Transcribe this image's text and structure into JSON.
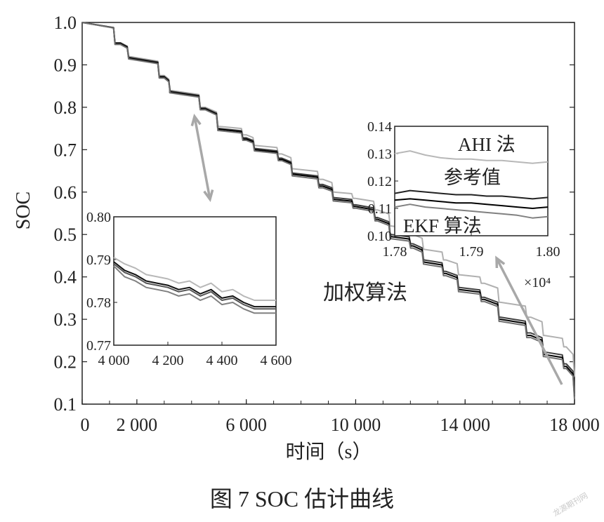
{
  "chart_data": {
    "type": "line",
    "ylabel": "SOC",
    "xlabel": "时间（s）",
    "caption": "图 7   SOC 估计曲线",
    "xlim": [
      0,
      18000
    ],
    "ylim": [
      0.1,
      1.0
    ],
    "xticks": [
      "0",
      "2 000",
      "6 000",
      "10 000",
      "14 000",
      "18 000"
    ],
    "xtick_values": [
      0,
      2000,
      6000,
      10000,
      14000,
      18000
    ],
    "yticks": [
      "0.1",
      "0.2",
      "0.3",
      "0.4",
      "0.5",
      "0.6",
      "0.7",
      "0.8",
      "0.9",
      "1.0"
    ],
    "annotations": {
      "weighted": "加权算法",
      "ahi": "AHI 法",
      "reference": "参考值",
      "ekf": "EKF 算法",
      "multiplier": "×10⁴"
    },
    "main_series": [
      {
        "color": "#b0b0b0",
        "x": [
          0,
          1400,
          1700,
          3000,
          3200,
          4500,
          5000,
          6000,
          6300,
          7300,
          7700,
          8800,
          9200,
          10000,
          10800,
          11300,
          12100,
          12500,
          13300,
          13800,
          14700,
          15300,
          16400,
          16900,
          17700,
          18000
        ],
        "y": [
          1.0,
          0.952,
          0.92,
          0.875,
          0.84,
          0.8,
          0.755,
          0.735,
          0.71,
          0.69,
          0.655,
          0.63,
          0.6,
          0.585,
          0.558,
          0.52,
          0.5,
          0.465,
          0.44,
          0.405,
          0.385,
          0.34,
          0.305,
          0.262,
          0.235,
          0.165
        ]
      },
      {
        "color": "#404040",
        "x": [
          0,
          1400,
          1700,
          3000,
          3200,
          4500,
          5000,
          6000,
          6300,
          7300,
          7700,
          8800,
          9200,
          10000,
          10800,
          11300,
          12100,
          12500,
          13300,
          13800,
          14700,
          15300,
          16400,
          16900,
          17700,
          18000
        ],
        "y": [
          1.0,
          0.952,
          0.918,
          0.873,
          0.838,
          0.798,
          0.75,
          0.728,
          0.703,
          0.68,
          0.645,
          0.618,
          0.587,
          0.57,
          0.54,
          0.5,
          0.478,
          0.44,
          0.413,
          0.375,
          0.352,
          0.305,
          0.268,
          0.223,
          0.195,
          0.125
        ]
      },
      {
        "color": "#000000",
        "x": [
          0,
          1400,
          1700,
          3000,
          3200,
          4500,
          5000,
          6000,
          6300,
          7300,
          7700,
          8800,
          9200,
          10000,
          10800,
          11300,
          12100,
          12500,
          13300,
          13800,
          14700,
          15300,
          16400,
          16900,
          17700,
          18000
        ],
        "y": [
          1.0,
          0.95,
          0.916,
          0.871,
          0.836,
          0.796,
          0.748,
          0.725,
          0.7,
          0.677,
          0.642,
          0.614,
          0.583,
          0.566,
          0.536,
          0.495,
          0.473,
          0.435,
          0.408,
          0.37,
          0.347,
          0.3,
          0.262,
          0.217,
          0.189,
          0.118
        ]
      },
      {
        "color": "#707070",
        "x": [
          0,
          1400,
          1700,
          3000,
          3200,
          4500,
          5000,
          6000,
          6300,
          7300,
          7700,
          8800,
          9200,
          10000,
          10800,
          11300,
          12100,
          12500,
          13300,
          13800,
          14700,
          15300,
          16400,
          16900,
          17700,
          18000
        ],
        "y": [
          1.0,
          0.948,
          0.914,
          0.869,
          0.834,
          0.794,
          0.745,
          0.722,
          0.697,
          0.674,
          0.638,
          0.61,
          0.579,
          0.562,
          0.532,
          0.49,
          0.468,
          0.43,
          0.403,
          0.365,
          0.342,
          0.295,
          0.257,
          0.212,
          0.184,
          0.112
        ]
      }
    ],
    "inset_left": {
      "xlim": [
        4000,
        4600
      ],
      "ylim": [
        0.77,
        0.8
      ],
      "xticks": [
        "4 000",
        "4 200",
        "4 400",
        "4 600"
      ],
      "xtick_values": [
        4000,
        4200,
        4400,
        4600
      ],
      "yticks": [
        "0.77",
        "0.78",
        "0.79",
        "0.80"
      ],
      "ytick_values": [
        0.77,
        0.78,
        0.79,
        0.8
      ],
      "series": [
        {
          "color": "#b8b8b8",
          "x": [
            4000,
            4040,
            4080,
            4120,
            4160,
            4200,
            4240,
            4280,
            4320,
            4360,
            4400,
            4440,
            4480,
            4520,
            4560,
            4600
          ],
          "y": [
            0.7905,
            0.789,
            0.788,
            0.7865,
            0.786,
            0.7855,
            0.7845,
            0.785,
            0.7835,
            0.7845,
            0.7825,
            0.783,
            0.7815,
            0.7805,
            0.7805,
            0.7805
          ]
        },
        {
          "color": "#111111",
          "x": [
            4000,
            4040,
            4080,
            4120,
            4160,
            4200,
            4240,
            4280,
            4320,
            4360,
            4400,
            4440,
            4480,
            4520,
            4560,
            4600
          ],
          "y": [
            0.7895,
            0.7875,
            0.7865,
            0.785,
            0.7845,
            0.784,
            0.783,
            0.7835,
            0.782,
            0.783,
            0.781,
            0.7815,
            0.78,
            0.779,
            0.779,
            0.779
          ]
        },
        {
          "color": "#555555",
          "x": [
            4000,
            4040,
            4080,
            4120,
            4160,
            4200,
            4240,
            4280,
            4320,
            4360,
            4400,
            4440,
            4480,
            4520,
            4560,
            4600
          ],
          "y": [
            0.789,
            0.787,
            0.786,
            0.7845,
            0.784,
            0.7835,
            0.7825,
            0.783,
            0.7815,
            0.7825,
            0.7805,
            0.781,
            0.7795,
            0.7785,
            0.7785,
            0.7785
          ]
        },
        {
          "color": "#808080",
          "x": [
            4000,
            4040,
            4080,
            4120,
            4160,
            4200,
            4240,
            4280,
            4320,
            4360,
            4400,
            4440,
            4480,
            4520,
            4560,
            4600
          ],
          "y": [
            0.7885,
            0.786,
            0.785,
            0.7835,
            0.783,
            0.7825,
            0.7815,
            0.782,
            0.7805,
            0.7815,
            0.7795,
            0.78,
            0.7785,
            0.7775,
            0.7775,
            0.7775
          ]
        }
      ]
    },
    "inset_right": {
      "xlim": [
        1.78,
        1.8
      ],
      "ylim": [
        0.1,
        0.14
      ],
      "xticks": [
        "1.78",
        "1.79",
        "1.80"
      ],
      "xtick_values": [
        1.78,
        1.79,
        1.8
      ],
      "yticks": [
        "0.10",
        "0.11",
        "0.12",
        "0.13",
        "0.14"
      ],
      "ytick_values": [
        0.1,
        0.11,
        0.12,
        0.13,
        0.14
      ],
      "series": [
        {
          "color": "#b8b8b8",
          "x": [
            1.78,
            1.782,
            1.784,
            1.786,
            1.788,
            1.79,
            1.792,
            1.794,
            1.796,
            1.798,
            1.8
          ],
          "y": [
            0.13,
            0.131,
            0.1295,
            0.1285,
            0.128,
            0.128,
            0.1275,
            0.1275,
            0.127,
            0.1265,
            0.127
          ]
        },
        {
          "color": "#222222",
          "x": [
            1.78,
            1.782,
            1.784,
            1.786,
            1.788,
            1.79,
            1.792,
            1.794,
            1.796,
            1.798,
            1.8
          ],
          "y": [
            0.1155,
            0.1165,
            0.116,
            0.1155,
            0.115,
            0.115,
            0.1145,
            0.1145,
            0.114,
            0.1135,
            0.114
          ]
        },
        {
          "color": "#000000",
          "x": [
            1.78,
            1.782,
            1.784,
            1.786,
            1.788,
            1.79,
            1.792,
            1.794,
            1.796,
            1.798,
            1.8
          ],
          "y": [
            0.113,
            0.1135,
            0.113,
            0.1125,
            0.112,
            0.112,
            0.1115,
            0.111,
            0.1105,
            0.11,
            0.1105
          ]
        },
        {
          "color": "#808080",
          "x": [
            1.78,
            1.782,
            1.784,
            1.786,
            1.788,
            1.79,
            1.792,
            1.794,
            1.796,
            1.798,
            1.8
          ],
          "y": [
            0.1105,
            0.1115,
            0.1105,
            0.11,
            0.1095,
            0.109,
            0.1085,
            0.108,
            0.1075,
            0.1065,
            0.107
          ]
        }
      ]
    }
  },
  "watermark": "龙源期刊网"
}
